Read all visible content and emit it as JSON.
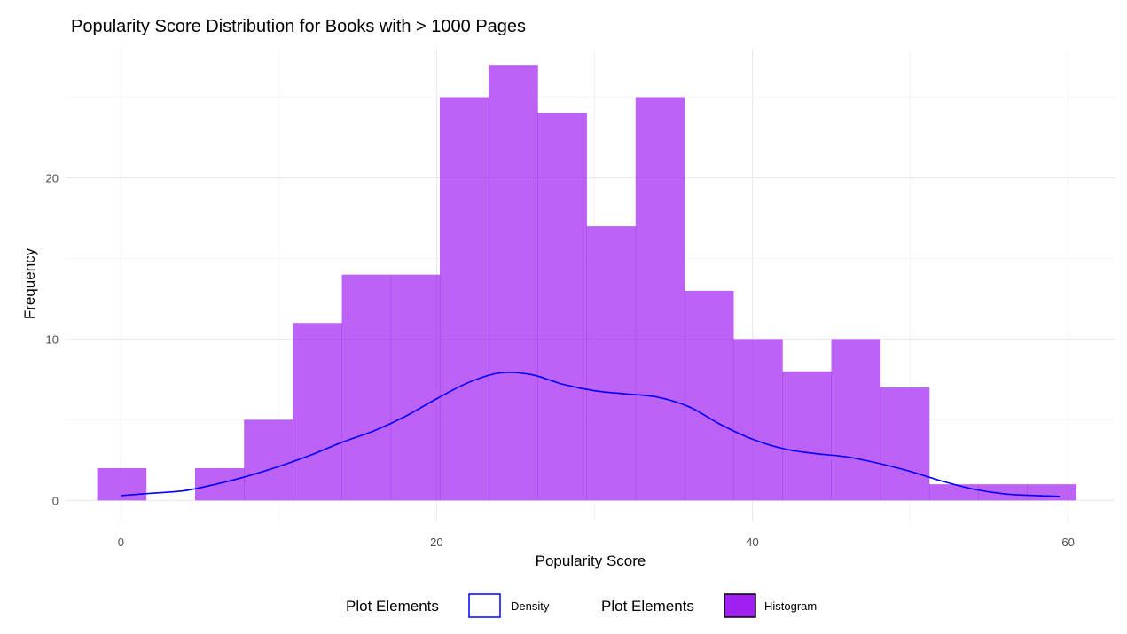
{
  "chart_data": {
    "type": "bar",
    "subtype": "histogram with density overlay",
    "title": "Popularity Score Distribution for Books with > 1000 Pages",
    "xlabel": "Popularity Score",
    "ylabel": "Frequency",
    "xlim": [
      -3.5,
      63
    ],
    "ylim": [
      -1.3,
      28
    ],
    "x_ticks": [
      0,
      20,
      40,
      60
    ],
    "y_ticks": [
      0,
      10,
      20
    ],
    "grid": true,
    "legend_position": "bottom",
    "bins": {
      "edges": [
        -1.5,
        1.6,
        4.7,
        7.8,
        10.9,
        14.0,
        17.1,
        20.2,
        23.3,
        26.4,
        29.5,
        32.6,
        35.7,
        38.8,
        41.9,
        45.0,
        48.1,
        51.2,
        54.3,
        57.4,
        60.5
      ],
      "counts": [
        2,
        0,
        2,
        5,
        11,
        14,
        14,
        25,
        27,
        24,
        17,
        25,
        13,
        10,
        8,
        10,
        7,
        1,
        1,
        1
      ]
    },
    "series": [
      {
        "name": "Histogram",
        "kind": "histogram",
        "color": "#a020f0",
        "values": [
          2,
          0,
          2,
          5,
          11,
          14,
          14,
          25,
          27,
          24,
          17,
          25,
          13,
          10,
          8,
          10,
          7,
          1,
          1,
          1
        ]
      },
      {
        "name": "Density",
        "kind": "line",
        "color": "#0000ff",
        "x": [
          0,
          2,
          4,
          6,
          8,
          10,
          12,
          14,
          16,
          18,
          20,
          22,
          24,
          26,
          28,
          30,
          32,
          34,
          36,
          38,
          40,
          42,
          44,
          46,
          48,
          50,
          52,
          54,
          56,
          58,
          59.5
        ],
        "y": [
          0.3,
          0.45,
          0.6,
          1.0,
          1.5,
          2.1,
          2.8,
          3.6,
          4.3,
          5.2,
          6.3,
          7.3,
          7.9,
          7.8,
          7.2,
          6.8,
          6.6,
          6.4,
          5.8,
          4.7,
          3.8,
          3.2,
          2.9,
          2.7,
          2.3,
          1.8,
          1.2,
          0.7,
          0.4,
          0.3,
          0.25
        ]
      }
    ],
    "legend": [
      {
        "title": "Plot Elements",
        "label": "Density",
        "stroke": "#0000ff",
        "fill": "#ffffff"
      },
      {
        "title": "Plot Elements",
        "label": "Histogram",
        "stroke": "#000000",
        "fill": "#a020f0"
      }
    ]
  }
}
